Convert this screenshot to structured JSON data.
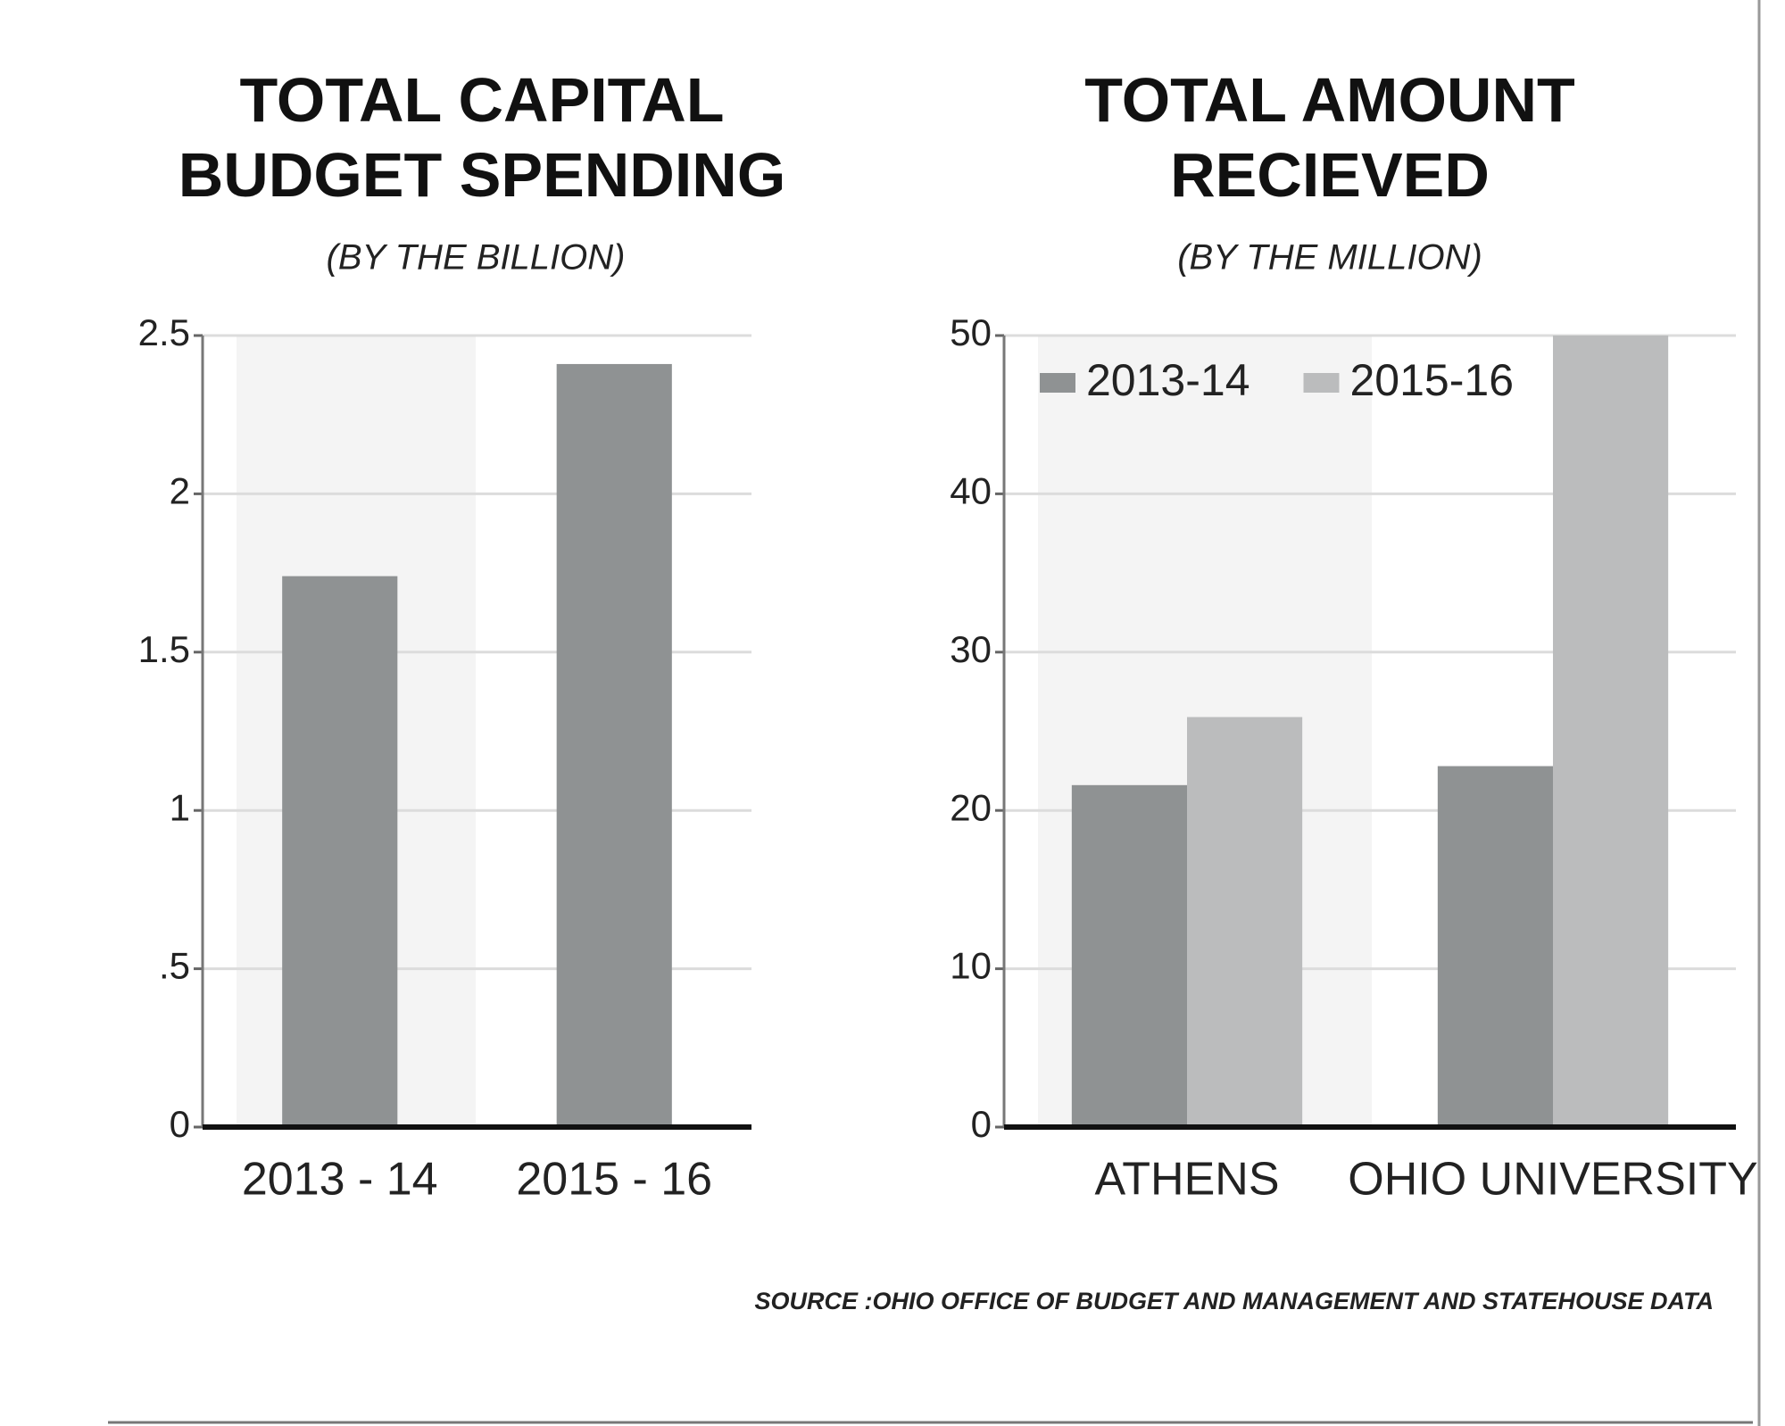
{
  "chart_data": [
    {
      "type": "bar",
      "title": "TOTAL CAPITAL BUDGET SPENDING",
      "subtitle": "(BY THE BILLION)",
      "categories": [
        "2013 - 14",
        "2015 - 16"
      ],
      "values": [
        1.74,
        2.41
      ],
      "color": "#8f9293",
      "ylim": [
        0,
        2.5
      ],
      "yticks": [
        0,
        {
          "value": 0.5,
          "label": ".5"
        },
        1,
        1.5,
        2,
        2.5
      ],
      "grid": true
    },
    {
      "type": "bar",
      "title": "TOTAL AMOUNT RECIEVED",
      "subtitle": "(BY THE MILLION)",
      "categories": [
        "ATHENS",
        "OHIO UNIVERSITY"
      ],
      "series": [
        {
          "name": "2013-14",
          "color": "#8f9293",
          "values": [
            21.6,
            22.8
          ]
        },
        {
          "name": "2015-16",
          "color": "#bbbcbd",
          "values": [
            25.9,
            50
          ]
        }
      ],
      "ylim": [
        0,
        50
      ],
      "yticks": [
        0,
        10,
        20,
        30,
        40,
        50
      ],
      "grid": true,
      "legend": "top-left"
    }
  ],
  "source": "SOURCE :OHIO OFFICE OF BUDGET AND MANAGEMENT AND STATEHOUSE DATA"
}
